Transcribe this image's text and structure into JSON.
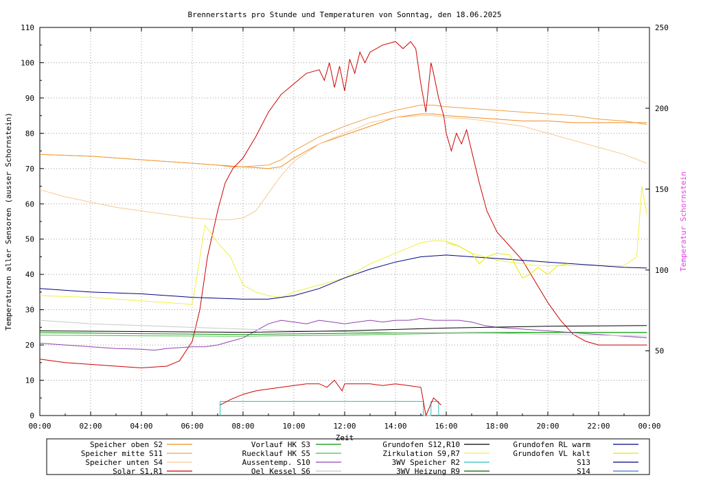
{
  "chart_data": {
    "type": "line",
    "title": "Brennerstarts pro Stunde und Temperaturen von Sonntag, den 18.06.2025",
    "xlabel": "Zeit",
    "ylabel": "Temperaturen aller Sensoren (ausser Schornstein)",
    "y2label": "Temperatur Schornstein",
    "xlim": [
      0,
      24
    ],
    "ylim": [
      0,
      110
    ],
    "y2lim": [
      10,
      250
    ],
    "x_ticks": [
      "00:00",
      "02:00",
      "04:00",
      "06:00",
      "08:00",
      "10:00",
      "12:00",
      "14:00",
      "16:00",
      "18:00",
      "20:00",
      "22:00",
      "00:00"
    ],
    "y_ticks": [
      "0",
      "10",
      "20",
      "30",
      "40",
      "50",
      "60",
      "70",
      "80",
      "90",
      "100",
      "110"
    ],
    "y2_ticks": [
      "50",
      "100",
      "150",
      "200",
      "250"
    ],
    "grid": true,
    "legend_position": "bottom",
    "colors": {
      "title": "#000000",
      "y2label": "#e040e0",
      "grid": "#9a9a9a"
    },
    "legend": [
      {
        "label": "Speicher oben  S2",
        "color": "#f08c1e"
      },
      {
        "label": "Speicher mitte S11",
        "color": "#f0a040"
      },
      {
        "label": "Speicher unten S4",
        "color": "#f8c890"
      },
      {
        "label": "Solar       S1,R1",
        "color": "#cc0000"
      },
      {
        "label": "Vorlauf HK     S3",
        "color": "#009000"
      },
      {
        "label": "Ruecklauf HK   S5",
        "color": "#40c040"
      },
      {
        "label": "Aussentemp.   S10",
        "color": "#9040b0"
      },
      {
        "label": "Oel Kessel     S6",
        "color": "#c8c8c8"
      },
      {
        "label": "Grundofen    S12,R10",
        "color": "#000000"
      },
      {
        "label": "Zirkulation   S9,R7",
        "color": "#f0f040"
      },
      {
        "label": "3WV Speicher     R2",
        "color": "#20c0c0"
      },
      {
        "label": "3WV Heizung   R9",
        "color": "#006000"
      },
      {
        "label": "Grundofen RL warm",
        "color": "#000080"
      },
      {
        "label": "Grundofen VL kalt",
        "color": "#e8e800"
      },
      {
        "label": "S13",
        "color": "#000080"
      },
      {
        "label": "S14",
        "color": "#4070e0"
      }
    ],
    "series": [
      {
        "label": "Speicher oben  S2",
        "axis": "y",
        "color": "#f08c1e",
        "x": [
          0,
          2,
          4,
          6,
          7,
          8,
          9,
          9.5,
          10,
          11,
          12,
          13,
          14,
          15,
          15.5,
          16,
          17,
          18,
          19,
          20,
          21,
          22,
          23,
          23.9
        ],
        "y": [
          74,
          73.5,
          72.5,
          71.5,
          71,
          70.5,
          70,
          70.5,
          73,
          77,
          79.5,
          82,
          84.5,
          85.5,
          85.5,
          85,
          84.5,
          84,
          83.5,
          83.5,
          83,
          83,
          83,
          83
        ]
      },
      {
        "label": "Speicher mitte S11",
        "axis": "y",
        "color": "#f0a040",
        "x": [
          0,
          2,
          4,
          6,
          7,
          7.5,
          8,
          9,
          9.5,
          10,
          11,
          12,
          13,
          14,
          15,
          15.5,
          16,
          17,
          18,
          19,
          20,
          21,
          22,
          23,
          23.9
        ],
        "y": [
          74,
          73.5,
          72.5,
          71.5,
          71,
          70.5,
          70.5,
          71,
          72.5,
          75,
          79,
          82,
          84.5,
          86.5,
          88,
          88,
          87.5,
          87,
          86.5,
          86,
          85.5,
          85,
          84,
          83.5,
          82.5
        ]
      },
      {
        "label": "Speicher unten S4",
        "axis": "y",
        "color": "#f8c890",
        "x": [
          0,
          1,
          2,
          3,
          4,
          5,
          6,
          7,
          7.5,
          8,
          8.5,
          9,
          9.5,
          10,
          11,
          12,
          13,
          14,
          15,
          15.5,
          16,
          17,
          18,
          19,
          20,
          21,
          22,
          23,
          23.9
        ],
        "y": [
          64,
          62,
          60.5,
          59,
          58,
          57,
          56,
          55.5,
          55.5,
          56,
          58,
          63,
          68,
          72,
          77,
          80,
          83,
          84.5,
          85,
          85,
          84.5,
          84,
          83,
          82,
          80,
          78,
          76,
          74,
          71.5
        ]
      },
      {
        "label": "Solar       S1,R1",
        "axis": "y",
        "color": "#cc0000",
        "x": [
          0,
          1,
          2,
          3,
          4,
          5,
          5.5,
          6,
          6.3,
          6.6,
          7,
          7.3,
          7.6,
          8,
          8.5,
          9,
          9.5,
          10,
          10.5,
          11,
          11.2,
          11.4,
          11.6,
          11.8,
          12,
          12.2,
          12.4,
          12.6,
          12.8,
          13,
          13.5,
          14,
          14.3,
          14.6,
          14.8,
          15,
          15.2,
          15.4,
          15.5,
          15.7,
          15.9,
          16,
          16.2,
          16.4,
          16.6,
          16.8,
          17,
          17.3,
          17.6,
          18,
          18.5,
          19,
          19.5,
          20,
          20.5,
          21,
          21.5,
          22,
          22.5,
          23,
          23.5,
          23.9
        ],
        "y": [
          16,
          15,
          14.5,
          14,
          13.5,
          14,
          15.5,
          21,
          30,
          45,
          58,
          66,
          70,
          73,
          79,
          86,
          91,
          94,
          97,
          98,
          95,
          100,
          93,
          99,
          92,
          101,
          97,
          103,
          100,
          103,
          105,
          106,
          104,
          106,
          104,
          94,
          86,
          100,
          97,
          90,
          85,
          80,
          75,
          80,
          77,
          81,
          75,
          66,
          58,
          52,
          48,
          44,
          38,
          32,
          27,
          23,
          21,
          20,
          20,
          20,
          20,
          20
        ]
      },
      {
        "label": "Vorlauf HK     S3",
        "axis": "y",
        "color": "#009000",
        "x": [
          0,
          4,
          8,
          12,
          16,
          20,
          23.9
        ],
        "y": [
          23.5,
          23.2,
          23,
          23.3,
          23.5,
          23.6,
          23.6
        ]
      },
      {
        "label": "Ruecklauf HK   S5",
        "axis": "y",
        "color": "#40c040",
        "x": [
          0,
          4,
          8,
          12,
          16,
          20,
          23.9
        ],
        "y": [
          22.8,
          22.6,
          22.5,
          22.8,
          23.3,
          23.5,
          23.5
        ]
      },
      {
        "label": "Aussentemp.   S10",
        "axis": "y",
        "color": "#9040b0",
        "x": [
          0,
          1,
          2,
          3,
          4,
          4.5,
          5,
          6,
          6.5,
          7,
          7.5,
          8,
          8.5,
          9,
          9.5,
          10,
          10.5,
          11,
          11.5,
          12,
          12.5,
          13,
          13.5,
          14,
          14.5,
          15,
          15.5,
          16,
          16.5,
          17,
          17.5,
          18,
          19,
          20,
          21,
          22,
          23,
          23.9
        ],
        "y": [
          20.5,
          20,
          19.5,
          19,
          18.8,
          18.5,
          19,
          19.5,
          19.5,
          20,
          21,
          22,
          24,
          26,
          27,
          26.5,
          26,
          27,
          26.5,
          26,
          26.5,
          27,
          26.5,
          27,
          27,
          27.5,
          27,
          27,
          27,
          26.5,
          25.5,
          25,
          24.5,
          24,
          23.5,
          23,
          22.5,
          22
        ]
      },
      {
        "label": "Oel Kessel     S6",
        "axis": "y",
        "color": "#c8c8c8",
        "x": [
          0,
          2,
          4,
          6,
          8,
          10,
          12,
          14,
          16,
          18,
          20,
          22,
          23.9
        ],
        "y": [
          27,
          26,
          25.5,
          25,
          24.5,
          24,
          23.8,
          23.5,
          23.5,
          23.3,
          23,
          22.8,
          22.5
        ]
      },
      {
        "label": "Grundofen    S12,R10",
        "axis": "y",
        "color": "#000000",
        "x": [
          0,
          4,
          8,
          12,
          16,
          20,
          23.9
        ],
        "y": [
          24,
          23.8,
          23.6,
          24,
          24.8,
          25.3,
          25.5
        ]
      },
      {
        "label": "Zirkulation   S9,R7",
        "axis": "y",
        "color": "#f0f040",
        "x": [
          0,
          2,
          4,
          6,
          6.2,
          6.5,
          7,
          7.5,
          8,
          8.5,
          9,
          9.5,
          10,
          11,
          12,
          13,
          14,
          15,
          15.5,
          16,
          16.5,
          17,
          17.5,
          18,
          18.5,
          19,
          19.5,
          20,
          21,
          22,
          23,
          23.5,
          23.7,
          23.9
        ],
        "y": [
          34,
          33.5,
          32.5,
          31.5,
          40,
          54,
          49,
          45,
          37,
          35,
          34,
          33.5,
          35,
          37,
          39,
          43,
          46,
          49,
          49.5,
          49.5,
          48,
          46,
          45,
          44,
          43.5,
          43,
          42.5,
          42.5,
          42.5,
          42.5,
          42.5,
          45,
          65,
          57
        ]
      },
      {
        "label": "Grundofen RL warm",
        "axis": "y",
        "color": "#000080",
        "x": [
          0,
          2,
          4,
          6,
          8,
          9,
          10,
          11,
          12,
          13,
          14,
          15,
          16,
          17,
          18,
          19,
          20,
          21,
          22,
          23,
          23.9
        ],
        "y": [
          36,
          35,
          34.5,
          33.5,
          33,
          33,
          34,
          36,
          39,
          41.5,
          43.5,
          45,
          45.5,
          45,
          44.5,
          44,
          43.5,
          43,
          42.5,
          42,
          41.8
        ]
      },
      {
        "label": "Grundofen VL kalt",
        "axis": "y",
        "color": "#e8e800",
        "x": [
          16,
          16.5,
          17,
          17.3,
          17.6,
          18,
          18.5,
          19,
          19.3,
          19.6,
          20,
          20.4,
          20.8
        ],
        "y": [
          49,
          48,
          46,
          43,
          45,
          46,
          45.5,
          39,
          40,
          42,
          40,
          42.5,
          43
        ]
      },
      {
        "label": "3WV Speicher     R2",
        "axis": "y",
        "color": "#20c0c0",
        "x": [
          7.1,
          7.1,
          15.1,
          15.1,
          15.4,
          15.4,
          15.7,
          15.7
        ],
        "y": [
          0,
          4,
          4,
          0,
          0,
          4,
          4,
          0
        ]
      },
      {
        "label": "Brennerstarts",
        "axis": "y",
        "color": "#cc0000",
        "x": [
          7.1,
          7.5,
          8,
          8.5,
          9,
          9.5,
          10,
          10.5,
          11,
          11.3,
          11.6,
          11.9,
          12,
          12.5,
          13,
          13.5,
          14,
          14.5,
          15,
          15.2,
          15.5,
          15.8
        ],
        "y": [
          3,
          4.5,
          6,
          7,
          7.5,
          8,
          8.5,
          9,
          9,
          8,
          10,
          7,
          9,
          9,
          9,
          8.5,
          9,
          8.5,
          8,
          0,
          5,
          3
        ]
      }
    ]
  }
}
